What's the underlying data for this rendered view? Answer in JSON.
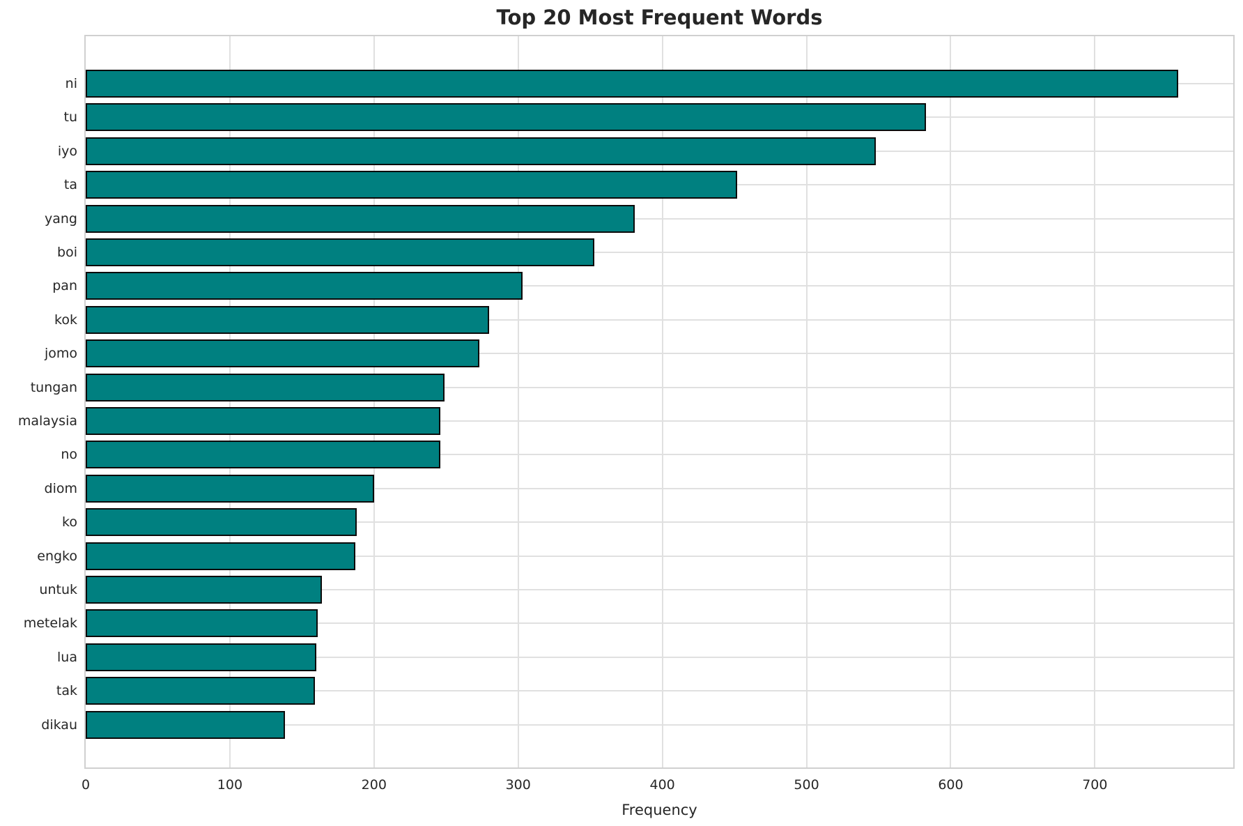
{
  "chart_data": {
    "type": "bar",
    "orientation": "horizontal",
    "title": "Top 20 Most Frequent Words",
    "xlabel": "Frequency",
    "ylabel": "",
    "categories": [
      "ni",
      "tu",
      "iyo",
      "ta",
      "yang",
      "boi",
      "pan",
      "kok",
      "jomo",
      "tungan",
      "malaysia",
      "no",
      "diom",
      "ko",
      "engko",
      "untuk",
      "metelak",
      "lua",
      "tak",
      "dikau"
    ],
    "values": [
      758,
      583,
      548,
      452,
      381,
      353,
      303,
      280,
      273,
      249,
      246,
      246,
      200,
      188,
      187,
      164,
      161,
      160,
      159,
      138
    ],
    "xticks": [
      0,
      100,
      200,
      300,
      400,
      500,
      600,
      700
    ],
    "xlim": [
      0,
      796
    ],
    "grid": true,
    "legend_position": "none",
    "colors": {
      "bar_fill": "#008080",
      "bar_edge": "#0a0a0a",
      "grid_line": "#e0e0e0",
      "spine": "#d0d0d0",
      "text": "#262626",
      "background": "#ffffff"
    }
  }
}
